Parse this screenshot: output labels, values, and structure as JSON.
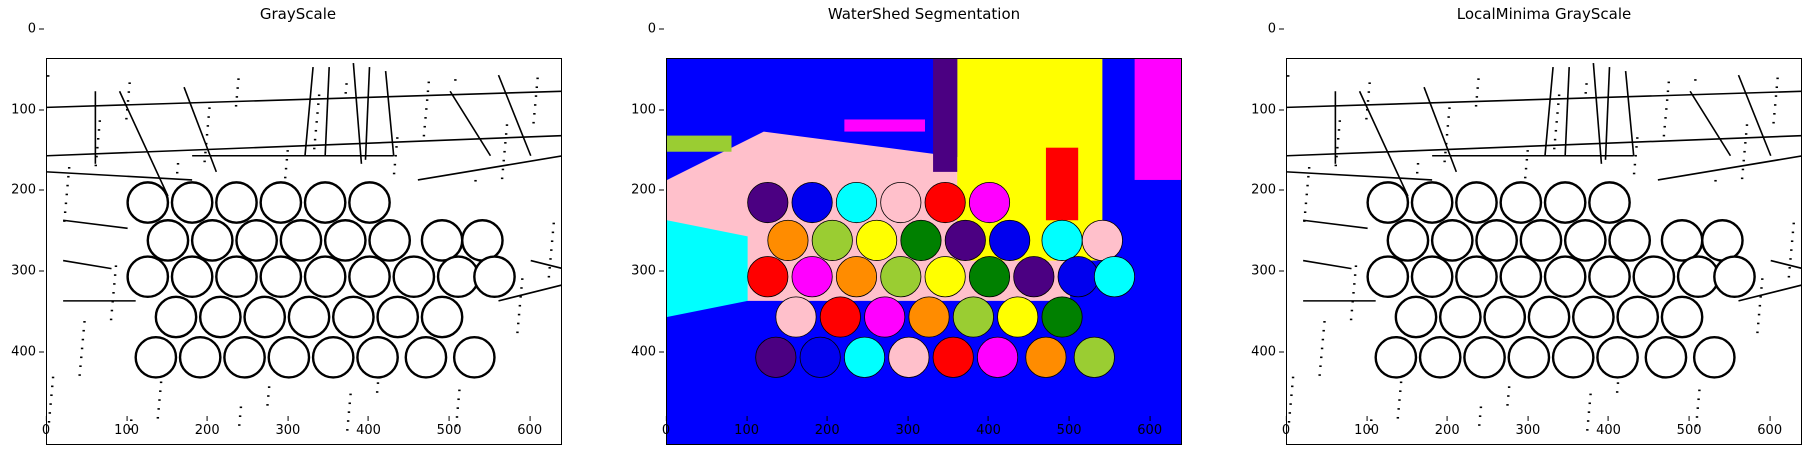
{
  "panels": [
    {
      "title": "GrayScale",
      "kind": "gray"
    },
    {
      "title": "WaterShed Segmentation",
      "kind": "seg"
    },
    {
      "title": "LocalMinima GrayScale",
      "kind": "gray"
    }
  ],
  "axes": {
    "yticks": [
      "0",
      "100",
      "200",
      "300",
      "400"
    ],
    "xticks": [
      "0",
      "100",
      "200",
      "300",
      "400",
      "500",
      "600"
    ]
  },
  "colors": {
    "seg_background": "#0000ff",
    "floor": "#ffc0cb",
    "yellow": "#ffff00",
    "magenta": "#ff00ff",
    "cyan": "#00ffff",
    "red": "#ff0000",
    "green": "#008000",
    "orange": "#ff8c00",
    "purple": "#4b0082",
    "olive": "#9acd32"
  }
}
